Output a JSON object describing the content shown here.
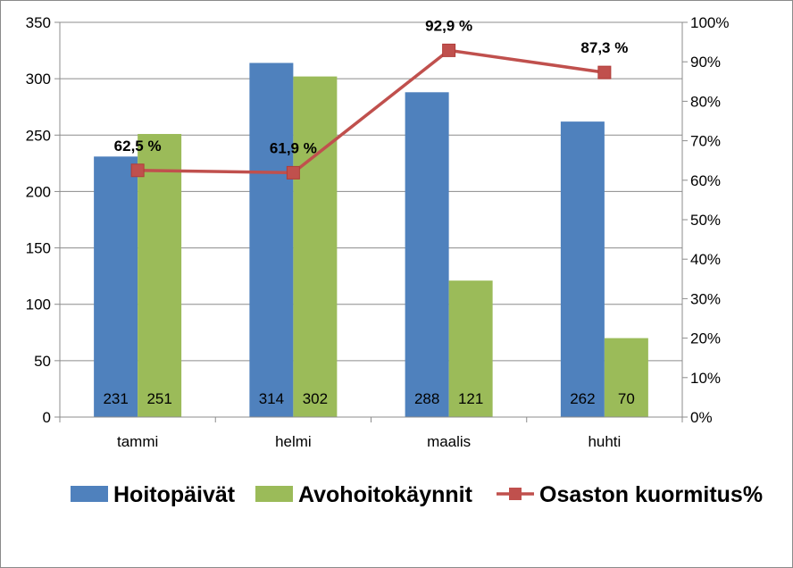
{
  "chart_data": {
    "type": "bar",
    "categories": [
      "tammi",
      "helmi",
      "maalis",
      "huhti"
    ],
    "series": [
      {
        "name": "Hoitopäivät",
        "type": "bar",
        "axis": "left",
        "color": "#4f81bd",
        "values": [
          231,
          314,
          288,
          262
        ],
        "labels": [
          "231",
          "314",
          "288",
          "262"
        ]
      },
      {
        "name": "Avohoitokäynnit",
        "type": "bar",
        "axis": "left",
        "color": "#9bbb59",
        "values": [
          251,
          302,
          121,
          70
        ],
        "labels": [
          "251",
          "302",
          "121",
          "70"
        ]
      },
      {
        "name": "Osaston kuormitus%",
        "type": "line",
        "axis": "right",
        "color": "#c0504d",
        "values": [
          62.5,
          61.9,
          92.9,
          87.3
        ],
        "labels": [
          "62,5 %",
          "61,9 %",
          "92,9 %",
          "87,3 %"
        ]
      }
    ],
    "y_left": {
      "min": 0,
      "max": 350,
      "ticks": [
        "0",
        "50",
        "100",
        "150",
        "200",
        "250",
        "300",
        "350"
      ]
    },
    "y_right": {
      "min": 0,
      "max": 100,
      "ticks": [
        "0%",
        "10%",
        "20%",
        "30%",
        "40%",
        "50%",
        "60%",
        "70%",
        "80%",
        "90%",
        "100%"
      ]
    },
    "grid": true,
    "legend_position": "bottom"
  }
}
